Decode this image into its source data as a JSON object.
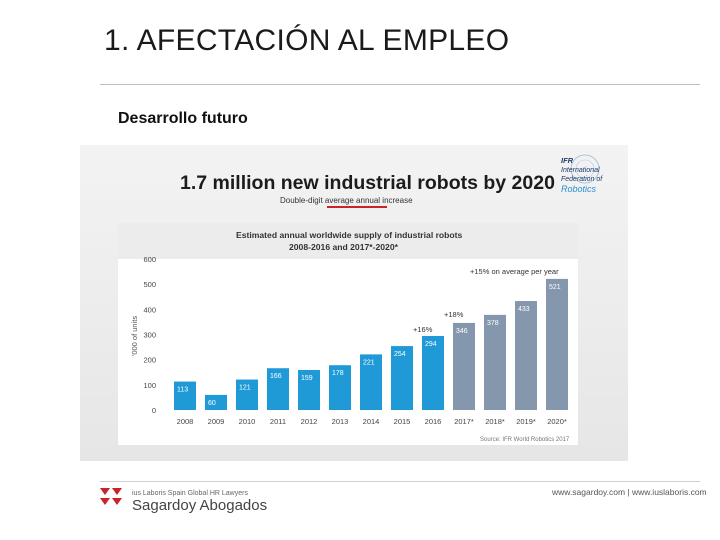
{
  "slide": {
    "title": "1. AFECTACIÓN AL EMPLEO",
    "subtitle": "Desarrollo futuro"
  },
  "infographic": {
    "headline": "1.7 million new industrial robots by 2020",
    "tagline": "Double-digit average annual increase",
    "ifr_logo_lines": [
      "IFR",
      "International",
      "Federation of"
    ],
    "ifr_logo_script": "Robotics"
  },
  "footer": {
    "brand_top": "ius Laboris Spain Global HR Lawyers",
    "brand_name": "Sagardoy Abogados",
    "links": "www.sagardoy.com  |  www.iuslaboris.com"
  },
  "colors": {
    "blue": "#1f9ad6",
    "grey": "#8597ad",
    "red": "#cc2229",
    "headline": "#1c1c1c"
  },
  "chart_data": {
    "type": "bar",
    "title": "Estimated annual worldwide supply of industrial robots",
    "subtitle": "2008-2016 and 2017*-2020*",
    "ylabel": "'000 of units",
    "ylim": [
      0,
      600
    ],
    "yticks": [
      "0",
      "100",
      "200",
      "300",
      "400",
      "500",
      "600"
    ],
    "grid": false,
    "categories": [
      "2008",
      "2009",
      "2010",
      "2011",
      "2012",
      "2013",
      "2014",
      "2015",
      "2016",
      "2017*",
      "2018*",
      "2019*",
      "2020*"
    ],
    "values": [
      113,
      60,
      121,
      166,
      159,
      178,
      221,
      254,
      294,
      346,
      378,
      433,
      521
    ],
    "value_labels": [
      "113",
      "60",
      "121",
      "166",
      "159",
      "178",
      "221",
      "254",
      "294",
      "346",
      "378",
      "433",
      "521"
    ],
    "forecast_from_index": 9,
    "annotations": [
      {
        "text": "+16%",
        "after_category": "2016"
      },
      {
        "text": "+18%",
        "after_category": "2017*"
      },
      {
        "text": "+15% on average per year",
        "after_category": "2020*"
      }
    ],
    "source": "Source: IFR World Robotics 2017"
  }
}
